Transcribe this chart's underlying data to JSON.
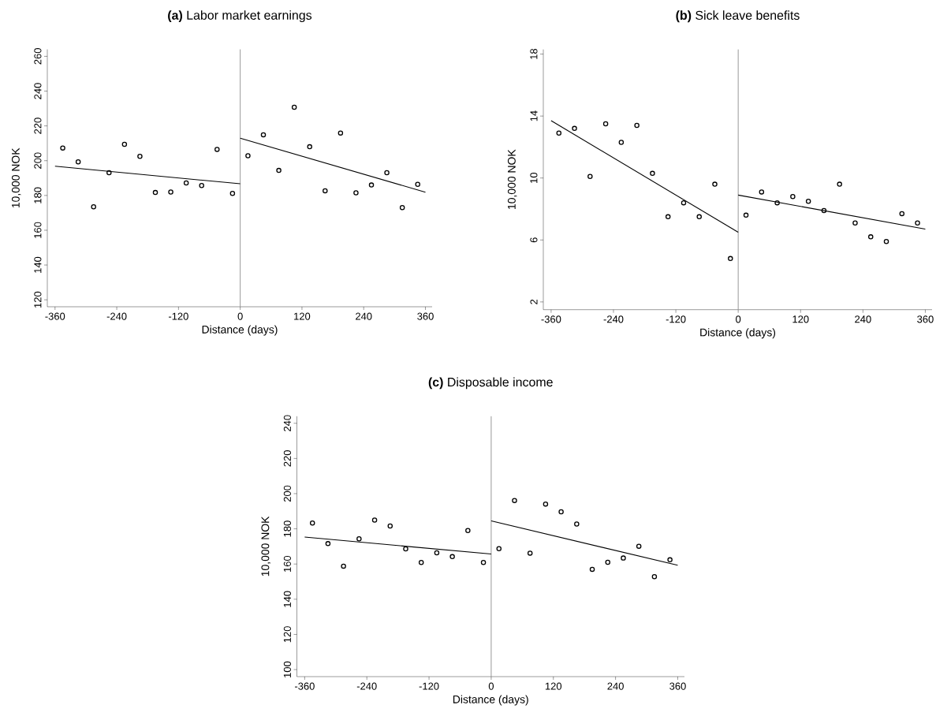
{
  "chart_data": [
    {
      "type": "scatter",
      "title": "**(a)** Labor market earnings",
      "xlabel": "Distance (days)",
      "ylabel": "10,000 NOK",
      "xlim": [
        -375,
        373
      ],
      "xticks": [
        -360,
        -240,
        -120,
        0,
        120,
        240,
        360
      ],
      "ylim": [
        116,
        264
      ],
      "yticks": [
        120,
        140,
        160,
        180,
        200,
        220,
        240,
        260
      ],
      "ref_lines": [
        {
          "axis": "x",
          "value": 0,
          "color": "#999999"
        }
      ],
      "series": [
        {
          "marker": "circle",
          "color": "#000000",
          "x": [
            -345,
            -315,
            -285,
            -255,
            -225,
            -195,
            -165,
            -135,
            -105,
            -75,
            -45,
            -15,
            15,
            45,
            75,
            105,
            135,
            165,
            195,
            225,
            255,
            285,
            315,
            345
          ],
          "values": [
            207.3,
            199.3,
            173.5,
            193.1,
            209.4,
            202.5,
            181.7,
            182.0,
            187.2,
            185.7,
            206.5,
            181.2,
            202.8,
            214.9,
            194.4,
            230.7,
            208.0,
            182.7,
            215.9,
            181.5,
            186.0,
            193.1,
            173.0,
            186.4
          ]
        },
        {
          "type": "line",
          "marker": "none",
          "color": "#000000",
          "x": [
            -360,
            0
          ],
          "values": [
            196.8,
            186.7
          ]
        },
        {
          "type": "line",
          "marker": "none",
          "color": "#000000",
          "x": [
            0,
            360
          ],
          "values": [
            212.9,
            181.9
          ]
        }
      ]
    },
    {
      "type": "scatter",
      "title": "**(b)** Sick leave benefits",
      "xlabel": "Distance (days)",
      "ylabel": "10,000 NOK",
      "xlim": [
        -375,
        373
      ],
      "xticks": [
        -360,
        -240,
        -120,
        0,
        120,
        240,
        360
      ],
      "ylim": [
        1.5,
        18.3
      ],
      "yticks": [
        2,
        6,
        10,
        14,
        18
      ],
      "ref_lines": [
        {
          "axis": "x",
          "value": 0,
          "color": "#999999"
        }
      ],
      "series": [
        {
          "marker": "circle",
          "color": "#000000",
          "x": [
            -345,
            -315,
            -285,
            -255,
            -225,
            -195,
            -165,
            -135,
            -105,
            -75,
            -45,
            -15,
            15,
            45,
            75,
            105,
            135,
            165,
            195,
            225,
            255,
            285,
            315,
            345
          ],
          "values": [
            12.9,
            13.2,
            10.1,
            13.5,
            12.3,
            13.4,
            10.3,
            7.5,
            8.4,
            7.5,
            9.6,
            4.8,
            7.6,
            9.1,
            8.4,
            8.8,
            8.5,
            7.9,
            9.6,
            7.1,
            6.2,
            5.9,
            7.7,
            7.1
          ]
        },
        {
          "type": "line",
          "marker": "none",
          "color": "#000000",
          "x": [
            -360,
            0
          ],
          "values": [
            13.7,
            6.5
          ]
        },
        {
          "type": "line",
          "marker": "none",
          "color": "#000000",
          "x": [
            0,
            360
          ],
          "values": [
            8.9,
            6.7
          ]
        }
      ]
    },
    {
      "type": "scatter",
      "title": "**(c)** Disposable income",
      "xlabel": "Distance (days)",
      "ylabel": "10,000 NOK",
      "xlim": [
        -375,
        373
      ],
      "xticks": [
        -360,
        -240,
        -120,
        0,
        120,
        240,
        360
      ],
      "ylim": [
        96,
        244
      ],
      "yticks": [
        100,
        120,
        140,
        160,
        180,
        200,
        220,
        240
      ],
      "ref_lines": [
        {
          "axis": "x",
          "value": 0,
          "color": "#999999"
        }
      ],
      "series": [
        {
          "marker": "circle",
          "color": "#000000",
          "x": [
            -345,
            -315,
            -285,
            -255,
            -225,
            -195,
            -165,
            -135,
            -105,
            -75,
            -45,
            -15,
            15,
            45,
            75,
            105,
            135,
            165,
            195,
            225,
            255,
            285,
            315,
            345
          ],
          "values": [
            183.3,
            171.6,
            158.8,
            174.3,
            185.0,
            181.6,
            168.6,
            160.9,
            166.4,
            164.2,
            179.0,
            160.9,
            168.7,
            196.1,
            166.2,
            194.1,
            189.7,
            182.7,
            157.0,
            161.0,
            163.4,
            170.1,
            152.8,
            162.4
          ]
        },
        {
          "type": "line",
          "marker": "none",
          "color": "#000000",
          "x": [
            -360,
            0
          ],
          "values": [
            175.3,
            165.7
          ]
        },
        {
          "type": "line",
          "marker": "none",
          "color": "#000000",
          "x": [
            0,
            360
          ],
          "values": [
            184.5,
            159.3
          ]
        }
      ]
    }
  ]
}
